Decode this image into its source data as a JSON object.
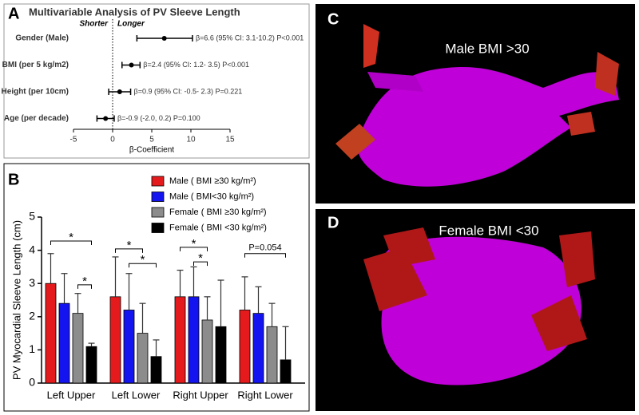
{
  "chart_data": [
    {
      "type": "forest",
      "panel_label": "A",
      "title": "Multivariable Analysis of PV Sleeve Length",
      "categories": [
        "Gender (Male)",
        "BMI (per 5 kg/m2)",
        "Height (per 10cm)",
        "Age (per decade)"
      ],
      "values": [
        6.6,
        2.4,
        0.9,
        -0.9
      ],
      "ci_low": [
        3.1,
        1.2,
        -0.5,
        -2.0
      ],
      "ci_high": [
        10.2,
        3.5,
        2.3,
        0.2
      ],
      "value_labels": [
        "β=6.6 (95% CI: 3.1-10.2) P<0.001",
        "β=2.4 (95% CI: 1.2- 3.5) P<0.001",
        "β=0.9 (95% CI: -0.5- 2.3) P=0.221",
        "β=-0.9 (-2.0, 0.2) P=0.100"
      ],
      "annotations": [
        "Shorter",
        "Longer"
      ],
      "xlabel": "β-Coefficient",
      "xlim": [
        -5,
        15
      ],
      "xticks": [
        -5,
        0,
        5,
        10,
        15
      ],
      "color": "#000000"
    },
    {
      "type": "bar",
      "panel_label": "B",
      "categories": [
        "Left Upper",
        "Left Lower",
        "Right Upper",
        "Right Lower"
      ],
      "ylabel": "PV Myocardial Sleeve Length (cm)",
      "ylim": [
        0,
        5
      ],
      "yticks": [
        0,
        1,
        2,
        3,
        4,
        5
      ],
      "series": [
        {
          "name": "Male  ( BMI ≥30 kg/m²)",
          "color": "#e41a1c",
          "values": [
            3.0,
            2.6,
            2.6,
            2.2
          ],
          "errors": [
            0.9,
            1.2,
            0.8,
            1.0
          ]
        },
        {
          "name": "Male  ( BMI<30 kg/m²)",
          "color": "#1414f0",
          "values": [
            2.4,
            2.2,
            2.6,
            2.1
          ],
          "errors": [
            0.9,
            1.1,
            0.9,
            0.8
          ]
        },
        {
          "name": "Female   ( BMI ≥30 kg/m²)",
          "color": "#8c8c8c",
          "values": [
            2.1,
            1.5,
            1.9,
            1.7
          ],
          "errors": [
            0.6,
            0.9,
            0.7,
            0.7
          ]
        },
        {
          "name": "Female   ( BMI <30 kg/m²)",
          "color": "#000000",
          "values": [
            1.1,
            0.8,
            1.7,
            0.7
          ],
          "errors": [
            0.1,
            0.5,
            1.4,
            1.0
          ]
        }
      ],
      "annotations": [
        "*",
        "*",
        "*",
        "*",
        "*",
        "*",
        "P=0.054"
      ]
    }
  ],
  "images": [
    {
      "label": "C",
      "caption": "Male BMI >30"
    },
    {
      "label": "D",
      "caption": "Female BMI <30"
    }
  ]
}
